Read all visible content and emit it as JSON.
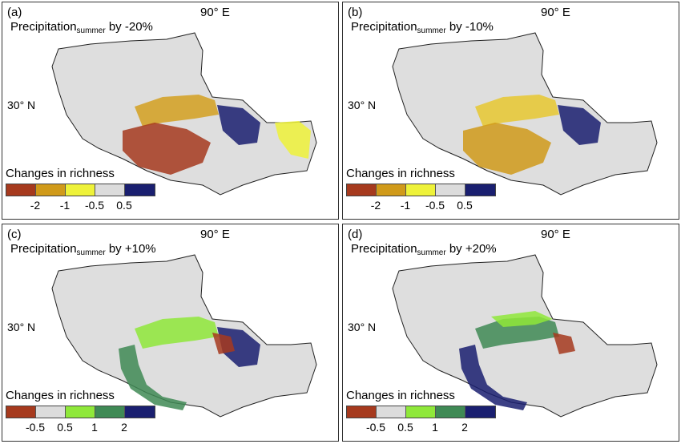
{
  "shared": {
    "longitude_label": "90° E",
    "latitude_label": "30° N",
    "legend_title": "Changes in richness",
    "variable_main": "Precipitation",
    "variable_sub": "summer"
  },
  "panels": [
    {
      "label": "(a)",
      "change": "by -20%",
      "legend_colors": [
        "#a63a1e",
        "#d09a1a",
        "#eef23a",
        "#dcdcdc",
        "#1a1f70"
      ],
      "legend_ticks": [
        "-2",
        "-1",
        "-0.5",
        "0.5"
      ],
      "hotspots": [
        {
          "color": "#d4a020",
          "region": "central band"
        },
        {
          "color": "#a63a1e",
          "region": "south-central"
        },
        {
          "color": "#1a1f70",
          "region": "east"
        },
        {
          "color": "#eef23a",
          "region": "far east"
        }
      ]
    },
    {
      "label": "(b)",
      "change": "by -10%",
      "legend_colors": [
        "#a63a1e",
        "#d09a1a",
        "#eef23a",
        "#dcdcdc",
        "#1a1f70"
      ],
      "legend_ticks": [
        "-2",
        "-1",
        "-0.5",
        "0.5"
      ],
      "hotspots": [
        {
          "color": "#e8c830",
          "region": "central band"
        },
        {
          "color": "#d09a1a",
          "region": "south-central"
        },
        {
          "color": "#1a1f70",
          "region": "east"
        }
      ]
    },
    {
      "label": "(c)",
      "change": "by +10%",
      "legend_colors": [
        "#a63a1e",
        "#dcdcdc",
        "#8fe83a",
        "#3f8a55",
        "#1a1f70"
      ],
      "legend_ticks": [
        "-0.5",
        "0.5",
        "1",
        "2"
      ],
      "hotspots": [
        {
          "color": "#8fe83a",
          "region": "central band"
        },
        {
          "color": "#3f8a55",
          "region": "south-west arc"
        },
        {
          "color": "#1a1f70",
          "region": "east"
        },
        {
          "color": "#a63a1e",
          "region": "east-central patch"
        }
      ]
    },
    {
      "label": "(d)",
      "change": "by +20%",
      "legend_colors": [
        "#a63a1e",
        "#dcdcdc",
        "#8fe83a",
        "#3f8a55",
        "#1a1f70"
      ],
      "legend_ticks": [
        "-0.5",
        "0.5",
        "1",
        "2"
      ],
      "hotspots": [
        {
          "color": "#3f8a55",
          "region": "central band"
        },
        {
          "color": "#1a1f70",
          "region": "south-west arc"
        },
        {
          "color": "#8fe83a",
          "region": "north edge"
        },
        {
          "color": "#a63a1e",
          "region": "east-central patch"
        }
      ]
    }
  ]
}
